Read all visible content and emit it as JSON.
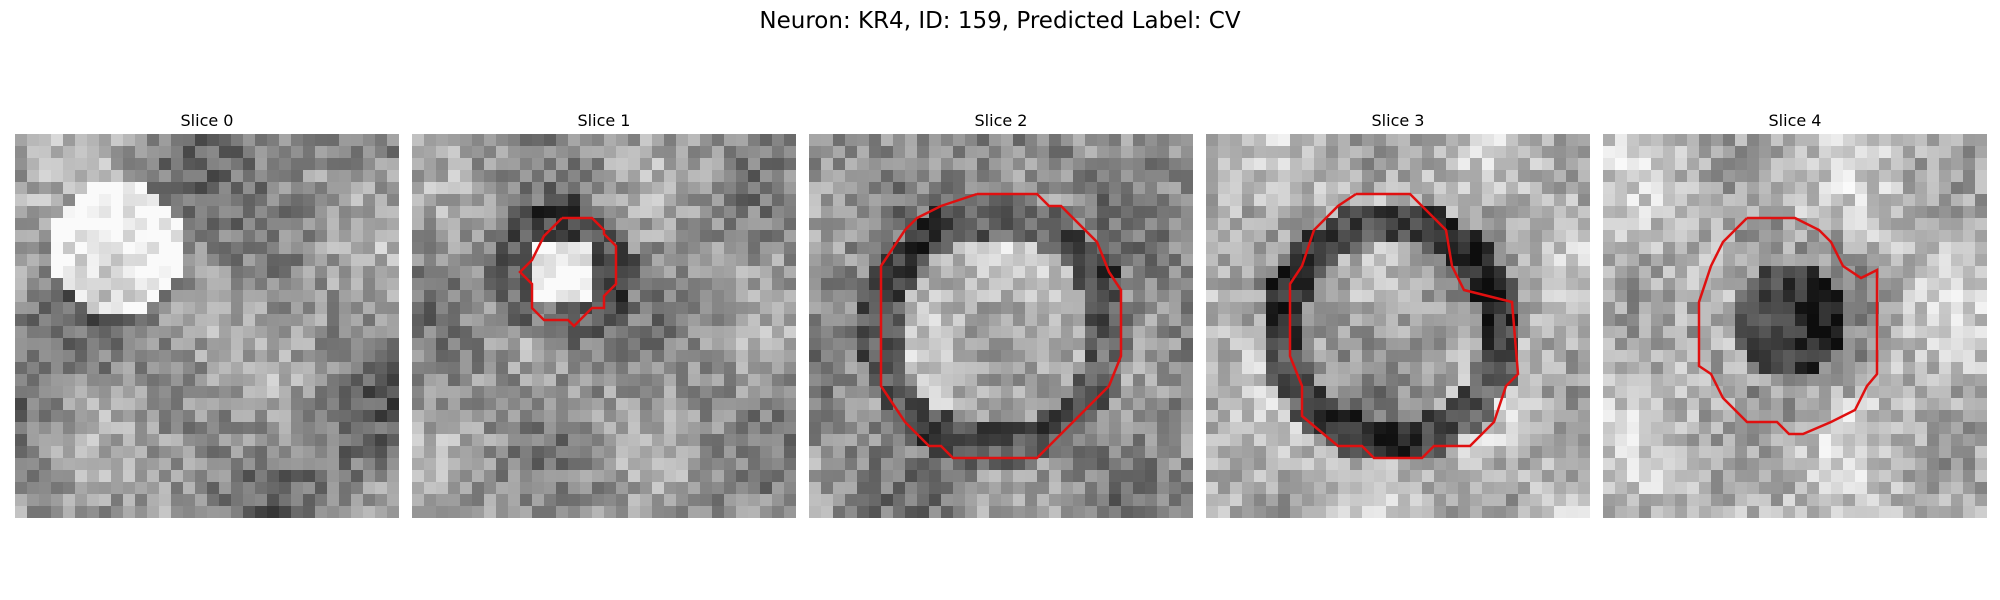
{
  "figure": {
    "title": "Neuron: KR4, ID: 159, Predicted Label: CV"
  },
  "overlay_color": "#e01010",
  "panels": [
    {
      "title": "Slice 0",
      "has_contour": false
    },
    {
      "title": "Slice 1",
      "has_contour": true
    },
    {
      "title": "Slice 2",
      "has_contour": true
    },
    {
      "title": "Slice 3",
      "has_contour": true
    },
    {
      "title": "Slice 4",
      "has_contour": true
    }
  ]
}
